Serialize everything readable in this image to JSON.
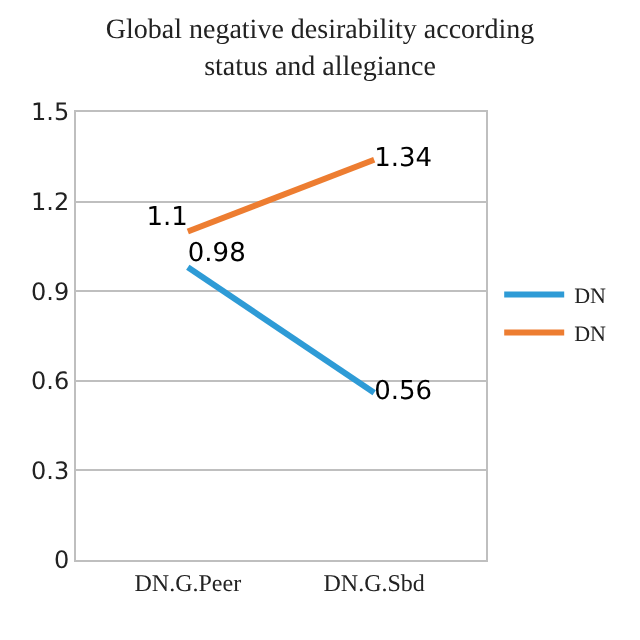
{
  "chart_data": {
    "type": "line",
    "title": "Global negative desirability according status and allegiance",
    "categories": [
      "DN.G.Peer",
      "DN.G.Sbd"
    ],
    "series": [
      {
        "name": "DN",
        "color": "#2e9bd6",
        "values": [
          0.98,
          0.56
        ],
        "value_labels": [
          "0.98",
          "0.56"
        ]
      },
      {
        "name": "DN",
        "color": "#ed7d31",
        "values": [
          1.1,
          1.34
        ],
        "value_labels": [
          "1.1",
          "1.34"
        ]
      }
    ],
    "ylim": [
      0,
      1.5
    ],
    "yticks": [
      0,
      0.3,
      0.6,
      0.9,
      1.2,
      1.5
    ],
    "grid": "y",
    "legend": "right",
    "marker": "none"
  }
}
